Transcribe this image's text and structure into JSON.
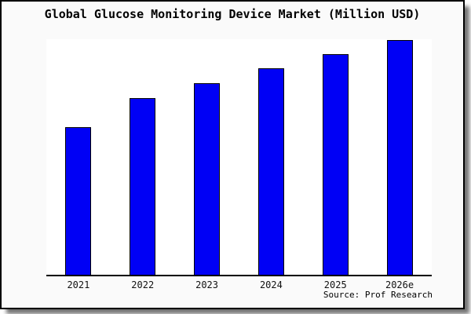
{
  "chart_data": {
    "type": "bar",
    "title": "Global Glucose Monitoring Device Market (Million USD)",
    "categories": [
      "2021",
      "2022",
      "2023",
      "2024",
      "2025",
      "2026e"
    ],
    "values": [
      188,
      225,
      244,
      263,
      281,
      299
    ],
    "xlabel": "",
    "ylabel": "",
    "ylim": [
      0,
      300
    ],
    "grid": false,
    "legend": false,
    "y_axis_visible": false,
    "bar_color": "#0000F5",
    "bar_border_color": "#000000",
    "plot_bg_color": "#FFFFFF",
    "figure_bg_color": "#FAFAFA",
    "source": "Source: Prof Research"
  }
}
